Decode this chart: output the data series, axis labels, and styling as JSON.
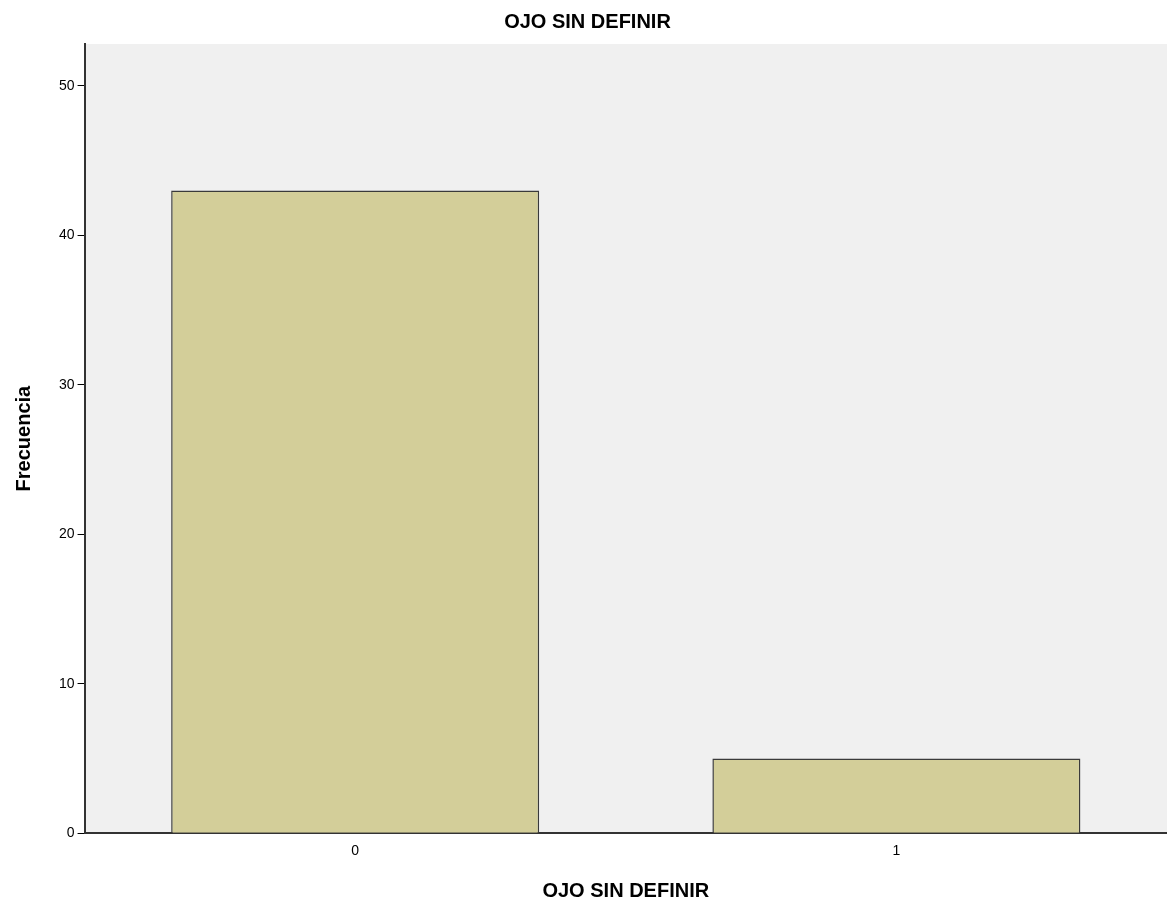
{
  "chart_data": {
    "type": "bar",
    "title": "OJO SIN DEFINIR",
    "xlabel": "OJO SIN DEFINIR",
    "ylabel": "Frecuencia",
    "categories": [
      "0",
      "1"
    ],
    "values": [
      43,
      5
    ],
    "color": "#d3ce99",
    "ylim": [
      0,
      52.8
    ],
    "yticks": [
      0,
      10,
      20,
      30,
      40,
      50
    ],
    "grid": false,
    "legend": false
  }
}
